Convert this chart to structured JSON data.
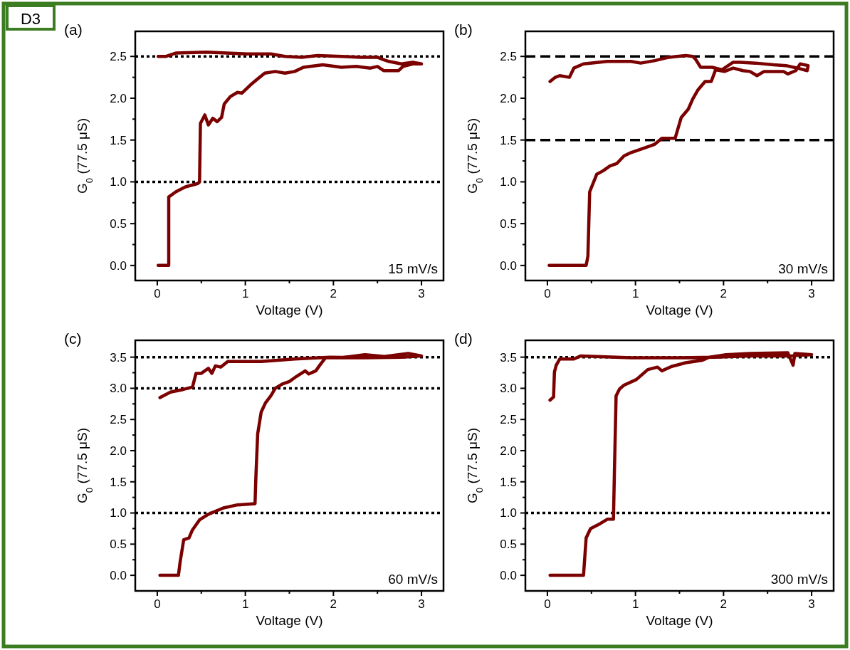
{
  "chart_data": [
    {
      "type": "line",
      "title": "(a)",
      "xlabel": "Voltage (V)",
      "ylabel": "G$_{0}$ (77.5 μS)",
      "xlim": [
        -0.25,
        3.25
      ],
      "xticks": [
        0,
        {
          "value": 0.5,
          "label": null
        },
        1,
        {
          "value": 1.5,
          "label": null
        },
        2,
        {
          "value": 2.5,
          "label": null
        },
        3
      ],
      "ylim": [
        -0.18,
        2.8
      ],
      "yticks": [
        {
          "value": 0,
          "label": "0.0"
        },
        {
          "value": 0.25,
          "label": null
        },
        0.5,
        {
          "value": 0.75,
          "label": null
        },
        {
          "value": 1,
          "label": "1.0"
        },
        {
          "value": 1.25,
          "label": null
        },
        1.5,
        {
          "value": 1.75,
          "label": null
        },
        {
          "value": 2,
          "label": "2.0"
        },
        {
          "value": 2.25,
          "label": null
        },
        2.5
      ],
      "series": [
        {
          "color": "#7b0000",
          "x": [
            0.01,
            0.13,
            0.13,
            0.21,
            0.32,
            0.46,
            0.48,
            0.49,
            0.54,
            0.58,
            0.63,
            0.68,
            0.73,
            0.76,
            0.83,
            0.91,
            0.96,
            1.02,
            1.07,
            1.15,
            1.22,
            1.34,
            1.45,
            1.56,
            1.66,
            1.88,
            2.09,
            2.26,
            2.42,
            2.5,
            2.57,
            2.74,
            2.79,
            2.9,
            3.0,
            2.9,
            2.77,
            2.63,
            2.57,
            2.5,
            2.31,
            2.09,
            1.82,
            1.64,
            1.45,
            1.29,
            1.02,
            0.56,
            0.21,
            0.1,
            0.01
          ],
          "values": [
            0,
            0,
            0.82,
            0.88,
            0.94,
            0.98,
            1.0,
            1.7,
            1.8,
            1.68,
            1.76,
            1.72,
            1.77,
            1.93,
            2.02,
            2.07,
            2.06,
            2.12,
            2.17,
            2.24,
            2.3,
            2.32,
            2.3,
            2.32,
            2.37,
            2.4,
            2.37,
            2.38,
            2.36,
            2.38,
            2.33,
            2.33,
            2.38,
            2.41,
            2.41,
            2.43,
            2.41,
            2.44,
            2.46,
            2.49,
            2.49,
            2.5,
            2.51,
            2.49,
            2.5,
            2.53,
            2.53,
            2.55,
            2.54,
            2.5,
            2.5
          ]
        }
      ],
      "ref_lines": [
        {
          "axis": "y",
          "value": 2.5,
          "color": "#000000",
          "line_style": "dotted"
        },
        {
          "axis": "y",
          "value": 1,
          "color": "#000000",
          "line_style": "dotted"
        }
      ],
      "annotations": [
        "D3",
        "15 mV/s"
      ]
    },
    {
      "type": "line",
      "title": "(b)",
      "xlabel": "Voltage (V)",
      "ylabel": "G$_{0}$ (77.5 μS)",
      "xlim": [
        -0.25,
        3.25
      ],
      "xticks": [
        0,
        {
          "value": 0.5,
          "label": null
        },
        1,
        {
          "value": 1.5,
          "label": null
        },
        2,
        {
          "value": 2.5,
          "label": null
        },
        3
      ],
      "ylim": [
        -0.18,
        2.8
      ],
      "yticks": [
        {
          "value": 0,
          "label": "0.0"
        },
        {
          "value": 0.25,
          "label": null
        },
        0.5,
        {
          "value": 0.75,
          "label": null
        },
        {
          "value": 1,
          "label": "1.0"
        },
        {
          "value": 1.25,
          "label": null
        },
        1.5,
        {
          "value": 1.75,
          "label": null
        },
        {
          "value": 2,
          "label": "2.0"
        },
        {
          "value": 2.25,
          "label": null
        },
        2.5
      ],
      "series": [
        {
          "color": "#7b0000",
          "x": [
            0.02,
            0.44,
            0.46,
            0.48,
            0.56,
            0.63,
            0.71,
            0.79,
            0.87,
            0.95,
            1.06,
            1.17,
            1.22,
            1.3,
            1.4,
            1.45,
            1.52,
            1.6,
            1.65,
            1.71,
            1.79,
            1.86,
            1.91,
            2.01,
            2.11,
            2.22,
            2.3,
            2.38,
            2.46,
            2.57,
            2.68,
            2.73,
            2.82,
            2.87,
            2.96,
            2.95,
            2.84,
            2.71,
            2.57,
            2.36,
            2.19,
            2.11,
            1.98,
            1.87,
            1.74,
            1.68,
            1.65,
            1.57,
            1.38,
            1.22,
            1.06,
            0.95,
            0.68,
            0.41,
            0.3,
            0.25,
            0.14,
            0.09,
            0.03
          ],
          "values": [
            0,
            0,
            0.11,
            0.88,
            1.09,
            1.13,
            1.19,
            1.22,
            1.31,
            1.35,
            1.39,
            1.43,
            1.45,
            1.52,
            1.52,
            1.52,
            1.77,
            1.87,
            1.99,
            2.1,
            2.2,
            2.2,
            2.34,
            2.32,
            2.36,
            2.33,
            2.32,
            2.27,
            2.32,
            2.32,
            2.32,
            2.29,
            2.33,
            2.41,
            2.39,
            2.33,
            2.36,
            2.39,
            2.4,
            2.42,
            2.43,
            2.43,
            2.34,
            2.37,
            2.37,
            2.47,
            2.5,
            2.51,
            2.49,
            2.45,
            2.42,
            2.44,
            2.44,
            2.41,
            2.36,
            2.25,
            2.27,
            2.25,
            2.2
          ]
        }
      ],
      "ref_lines": [
        {
          "axis": "y",
          "value": 2.5,
          "color": "#000000",
          "line_style": "dashed"
        },
        {
          "axis": "y",
          "value": 1.5,
          "color": "#000000",
          "line_style": "dashed"
        }
      ],
      "annotations": [
        "30 mV/s"
      ]
    },
    {
      "type": "line",
      "title": "(c)",
      "xlabel": "Voltage (V)",
      "ylabel": "G$_{0}$ (77.5 μS)",
      "xlim": [
        -0.25,
        3.25
      ],
      "xticks": [
        0,
        {
          "value": 0.5,
          "label": null
        },
        1,
        {
          "value": 1.5,
          "label": null
        },
        2,
        {
          "value": 2.5,
          "label": null
        },
        3
      ],
      "ylim": [
        -0.25,
        3.77
      ],
      "yticks": [
        {
          "value": 0,
          "label": "0.0"
        },
        {
          "value": 0.25,
          "label": null
        },
        0.5,
        {
          "value": 0.75,
          "label": null
        },
        {
          "value": 1,
          "label": "1.0"
        },
        {
          "value": 1.25,
          "label": null
        },
        1.5,
        {
          "value": 1.75,
          "label": null
        },
        {
          "value": 2,
          "label": "2.0"
        },
        {
          "value": 2.25,
          "label": null
        },
        2.5,
        {
          "value": 2.75,
          "label": null
        },
        {
          "value": 3,
          "label": "3.0"
        },
        {
          "value": 3.25,
          "label": null
        },
        3.5
      ],
      "series": [
        {
          "color": "#7b0000",
          "x": [
            0.03,
            0.24,
            0.26,
            0.3,
            0.36,
            0.4,
            0.48,
            0.58,
            0.75,
            0.91,
            1.11,
            1.12,
            1.14,
            1.18,
            1.23,
            1.29,
            1.34,
            1.42,
            1.5,
            1.58,
            1.68,
            1.72,
            1.8,
            1.85,
            1.91,
            2.09,
            2.36,
            2.58,
            2.85,
            3.0,
            2.77,
            2.36,
            1.96,
            1.56,
            1.18,
            0.8,
            0.72,
            0.66,
            0.62,
            0.58,
            0.5,
            0.44,
            0.4,
            0.29,
            0.15,
            0.03
          ],
          "values": [
            0,
            0,
            0.22,
            0.57,
            0.6,
            0.73,
            0.89,
            0.98,
            1.08,
            1.13,
            1.15,
            1.59,
            2.27,
            2.62,
            2.77,
            2.88,
            3.0,
            3.07,
            3.11,
            3.19,
            3.28,
            3.23,
            3.28,
            3.38,
            3.49,
            3.49,
            3.54,
            3.51,
            3.56,
            3.52,
            3.5,
            3.49,
            3.5,
            3.47,
            3.43,
            3.43,
            3.34,
            3.36,
            3.24,
            3.32,
            3.24,
            3.24,
            3.02,
            2.98,
            2.94,
            2.85
          ]
        }
      ],
      "ref_lines": [
        {
          "axis": "y",
          "value": 3.5,
          "color": "#000000",
          "line_style": "dotted"
        },
        {
          "axis": "y",
          "value": 3,
          "color": "#000000",
          "line_style": "dotted"
        },
        {
          "axis": "y",
          "value": 1,
          "color": "#000000",
          "line_style": "dotted"
        }
      ],
      "annotations": [
        "60 mV/s"
      ]
    },
    {
      "type": "line",
      "title": "(d)",
      "xlabel": "Voltage (V)",
      "ylabel": "G$_{0}$ (77.5 μS)",
      "xlim": [
        -0.25,
        3.25
      ],
      "xticks": [
        0,
        {
          "value": 0.5,
          "label": null
        },
        1,
        {
          "value": 1.5,
          "label": null
        },
        2,
        {
          "value": 2.5,
          "label": null
        },
        3
      ],
      "ylim": [
        -0.25,
        3.77
      ],
      "yticks": [
        {
          "value": 0,
          "label": "0.0"
        },
        {
          "value": 0.25,
          "label": null
        },
        0.5,
        {
          "value": 0.75,
          "label": null
        },
        {
          "value": 1,
          "label": "1.0"
        },
        {
          "value": 1.25,
          "label": null
        },
        1.5,
        {
          "value": 1.75,
          "label": null
        },
        {
          "value": 2,
          "label": "2.0"
        },
        {
          "value": 2.25,
          "label": null
        },
        2.5,
        {
          "value": 2.75,
          "label": null
        },
        {
          "value": 3,
          "label": "3.0"
        },
        {
          "value": 3.25,
          "label": null
        },
        3.5
      ],
      "series": [
        {
          "color": "#7b0000",
          "x": [
            0.03,
            0.41,
            0.44,
            0.49,
            0.6,
            0.68,
            0.75,
            0.76,
            0.78,
            0.82,
            0.87,
            1.01,
            1.14,
            1.25,
            1.3,
            1.41,
            1.57,
            1.76,
            1.84,
            2.03,
            2.3,
            2.73,
            2.79,
            2.81,
            3.0,
            2.71,
            2.3,
            1.9,
            1.49,
            0.95,
            0.38,
            0.3,
            0.14,
            0.1,
            0.08,
            0.07,
            0.03
          ],
          "values": [
            0,
            0,
            0.6,
            0.75,
            0.83,
            0.9,
            0.9,
            1.59,
            2.88,
            2.99,
            3.05,
            3.14,
            3.3,
            3.34,
            3.28,
            3.35,
            3.41,
            3.45,
            3.5,
            3.54,
            3.56,
            3.57,
            3.37,
            3.56,
            3.54,
            3.52,
            3.52,
            3.5,
            3.49,
            3.49,
            3.52,
            3.47,
            3.47,
            3.37,
            3.26,
            2.86,
            2.81
          ]
        }
      ],
      "ref_lines": [
        {
          "axis": "y",
          "value": 3.5,
          "color": "#000000",
          "line_style": "dotted"
        },
        {
          "axis": "y",
          "value": 1,
          "color": "#000000",
          "line_style": "dotted"
        }
      ],
      "annotations": [
        "300 mV/s"
      ]
    }
  ]
}
